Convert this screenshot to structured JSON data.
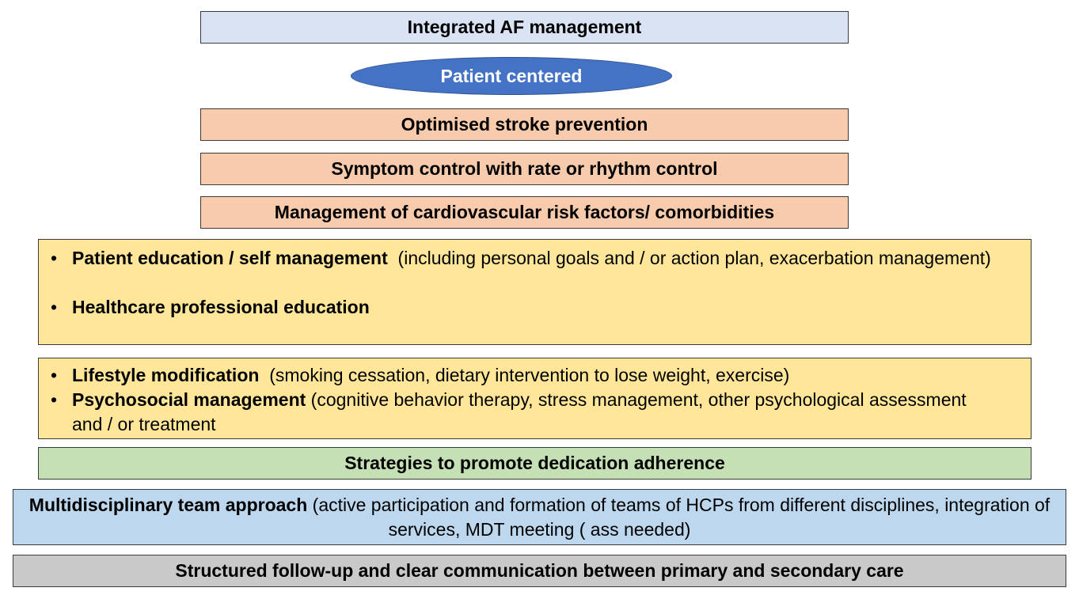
{
  "title": "Integrated AF management",
  "oval": "Patient centered",
  "pillars": [
    "Optimised stroke prevention",
    "Symptom control with rate or rhythm control",
    "Management of cardiovascular risk factors/ comorbidities"
  ],
  "education": {
    "items": [
      {
        "bold": "Patient education / self management",
        "rest": "  (including personal goals and / or action plan, exacerbation management)"
      },
      {
        "bold": "Healthcare professional education",
        "rest": ""
      }
    ]
  },
  "lifestyle": {
    "items": [
      {
        "bold": "Lifestyle modification",
        "rest": "  (smoking cessation, dietary intervention to lose weight, exercise)"
      },
      {
        "bold": "Psychosocial management",
        "rest": " (cognitive behavior therapy, stress management, other psychological assessment and / or treatment"
      }
    ]
  },
  "adherence": "Strategies to promote dedication adherence",
  "mdt": {
    "bold": "Multidisciplinary team approach",
    "rest": " (active participation and formation of teams of HCPs from different disciplines, integration of services, MDT meeting ( ass needed)"
  },
  "followup": "Structured follow-up and clear communication between primary and secondary care",
  "bullet_symbol": "•"
}
